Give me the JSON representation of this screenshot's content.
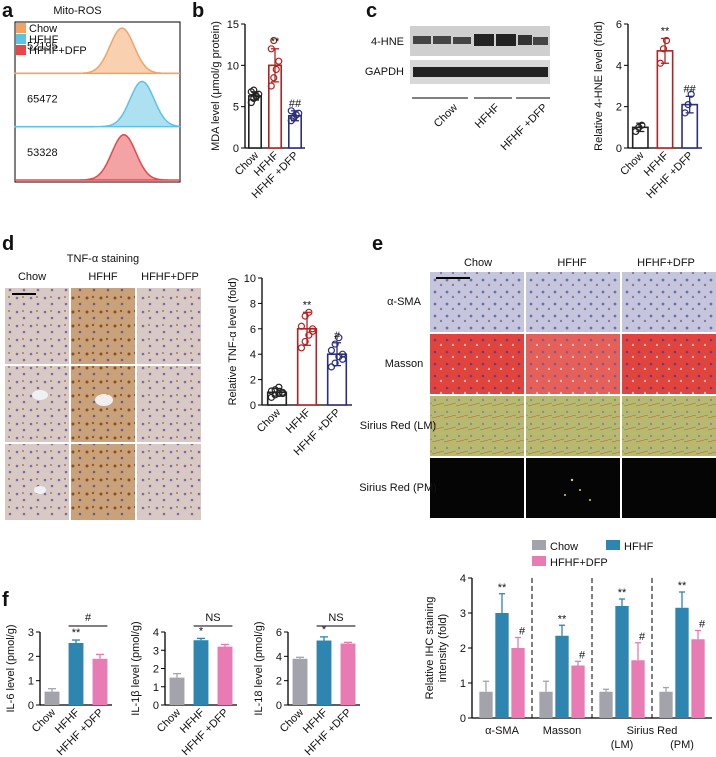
{
  "figure": {
    "panels": [
      "a",
      "b",
      "c",
      "d",
      "e",
      "f"
    ],
    "blot": {
      "bands": [
        "4-HNE",
        "GAPDH"
      ],
      "lanes": [
        "Chow",
        "HFHF",
        "HFHF +DFP"
      ]
    },
    "tnf_images": {
      "title": "TNF-α staining",
      "columns": [
        "Chow",
        "HFHF",
        "HFHF+DFP"
      ]
    },
    "ihc_images": {
      "columns": [
        "Chow",
        "HFHF",
        "HFHF+DFP"
      ],
      "rows": [
        "α-SMA",
        "Masson",
        "Sirius Red (LM)",
        "Sirius Red (PM)"
      ]
    }
  },
  "chart_data": [
    {
      "type": "density",
      "title": "Mito-ROS",
      "legend": "upper left",
      "series": [
        {
          "name": "Chow",
          "color": "#f4a261",
          "value": 52195
        },
        {
          "name": "HFHF",
          "color": "#5bc3e6",
          "value": 65472
        },
        {
          "name": "HFHF+DFP",
          "color": "#e8474a",
          "value": 53328
        }
      ]
    },
    {
      "type": "bar",
      "style": "open",
      "ylabel": [
        "MDA level (μmol/g protein)"
      ],
      "categories": [
        "Chow",
        "HFHF",
        "HFHF +DFP"
      ],
      "values": [
        6.3,
        10,
        3.9
      ],
      "errors": [
        0.5,
        2.0,
        0.6
      ],
      "colors": [
        "#222222",
        "#b22222",
        "#2b2f7a"
      ],
      "annotations": [
        null,
        "**",
        "##"
      ],
      "points": [
        [
          5.5,
          6.0,
          6.2,
          6.5,
          6.8,
          7.0,
          6.3
        ],
        [
          7.5,
          8.5,
          9.5,
          10.5,
          12,
          13
        ],
        [
          3.3,
          3.7,
          4.0,
          4.2,
          4.5,
          3.6
        ]
      ],
      "ylim": [
        0,
        15
      ],
      "yticks": [
        0,
        5,
        10,
        15
      ]
    },
    {
      "type": "bar",
      "style": "open",
      "ylabel": [
        "Relative 4-HNE level (fold)"
      ],
      "categories": [
        "Chow",
        "HFHF",
        "HFHF +DFP"
      ],
      "values": [
        1,
        4.7,
        2.1
      ],
      "errors": [
        0.2,
        0.6,
        0.4
      ],
      "colors": [
        "#222222",
        "#b22222",
        "#2b2f7a"
      ],
      "annotations": [
        null,
        "**",
        "##"
      ],
      "points": [
        [
          0.8,
          1.0,
          1.1
        ],
        [
          4.1,
          4.8,
          5.2
        ],
        [
          1.7,
          2.1,
          2.6
        ]
      ],
      "ylim": [
        0,
        6
      ],
      "yticks": [
        0,
        2,
        4,
        6
      ]
    },
    {
      "type": "bar",
      "style": "open",
      "ylabel": [
        "Relative TNF-α level (fold)"
      ],
      "categories": [
        "Chow",
        "HFHF",
        "HFHF +DFP"
      ],
      "values": [
        1,
        6,
        4
      ],
      "errors": [
        0.3,
        1.3,
        0.9
      ],
      "colors": [
        "#222222",
        "#b22222",
        "#2b2f7a"
      ],
      "annotations": [
        null,
        "**",
        "#"
      ],
      "points": [
        [
          0.6,
          0.8,
          0.9,
          1.0,
          1.1,
          1.2,
          1.4,
          0.9
        ],
        [
          4.5,
          5.0,
          5.5,
          5.8,
          6.2,
          7.0,
          7.3,
          6.0
        ],
        [
          3.0,
          3.3,
          3.8,
          4.0,
          4.3,
          4.8,
          5.3,
          3.6
        ]
      ],
      "ylim": [
        0,
        10
      ],
      "yticks": [
        0,
        2,
        4,
        6,
        8,
        10
      ]
    },
    {
      "type": "bar",
      "style": "filled",
      "ylabel": [
        "IL-6 level (pmol/g)"
      ],
      "categories": [
        "Chow",
        "HFHF",
        "HFHF +DFP"
      ],
      "values": [
        0.55,
        2.55,
        1.9
      ],
      "errors": [
        0.12,
        0.12,
        0.18
      ],
      "colors": [
        "#a3a3ab",
        "#2e86b0",
        "#e87bb3"
      ],
      "annotations": [
        null,
        "**",
        null
      ],
      "bracket_label": "#",
      "ylim": [
        0,
        3
      ],
      "yticks": [
        0,
        1,
        2,
        3
      ]
    },
    {
      "type": "bar",
      "style": "filled",
      "ylabel": [
        "IL-1β level (pmol/g)"
      ],
      "categories": [
        "Chow",
        "HFHF",
        "HFHF +DFP"
      ],
      "values": [
        1.5,
        3.55,
        3.2
      ],
      "errors": [
        0.22,
        0.1,
        0.12
      ],
      "colors": [
        "#a3a3ab",
        "#2e86b0",
        "#e87bb3"
      ],
      "annotations": [
        null,
        "*",
        null
      ],
      "bracket_label": "NS",
      "ylim": [
        0,
        4
      ],
      "yticks": [
        0,
        1,
        2,
        3,
        4
      ]
    },
    {
      "type": "bar",
      "style": "filled",
      "ylabel": [
        "IL-18 level (pmol/g)"
      ],
      "categories": [
        "Chow",
        "HFHF",
        "HFHF +DFP"
      ],
      "values": [
        3.8,
        5.3,
        5.05
      ],
      "errors": [
        0.12,
        0.3,
        0.1
      ],
      "colors": [
        "#a3a3ab",
        "#2e86b0",
        "#e87bb3"
      ],
      "annotations": [
        null,
        "*",
        null
      ],
      "bracket_label": "NS",
      "ylim": [
        0,
        6
      ],
      "yticks": [
        0,
        2,
        4,
        6
      ]
    },
    {
      "type": "bar",
      "style": "filled",
      "ylabel": [
        "Relative IHC staining",
        "intensity (fold)"
      ],
      "categories": [
        "α-SMA",
        "Masson",
        "(LM)",
        "(PM)"
      ],
      "category_group": "Sirius Red",
      "series": [
        {
          "name": "Chow",
          "color": "#a3a3ab",
          "values": [
            0.75,
            0.75,
            0.75,
            0.75
          ],
          "errors": [
            0.3,
            0.3,
            0.07,
            0.12
          ],
          "annotations": [
            null,
            null,
            null,
            null
          ]
        },
        {
          "name": "HFHF",
          "color": "#2e86b0",
          "values": [
            3.0,
            2.35,
            3.2,
            3.15
          ],
          "errors": [
            0.55,
            0.3,
            0.2,
            0.45
          ],
          "annotations": [
            "**",
            "**",
            "**",
            "**"
          ]
        },
        {
          "name": "HFHF+DFP",
          "color": "#e87bb3",
          "values": [
            2.0,
            1.5,
            1.65,
            2.25
          ],
          "errors": [
            0.3,
            0.12,
            0.5,
            0.25
          ],
          "annotations": [
            "#",
            "#",
            "#",
            "#"
          ]
        }
      ],
      "ylim": [
        0,
        4
      ],
      "yticks": [
        0,
        1,
        2,
        3,
        4
      ]
    }
  ]
}
